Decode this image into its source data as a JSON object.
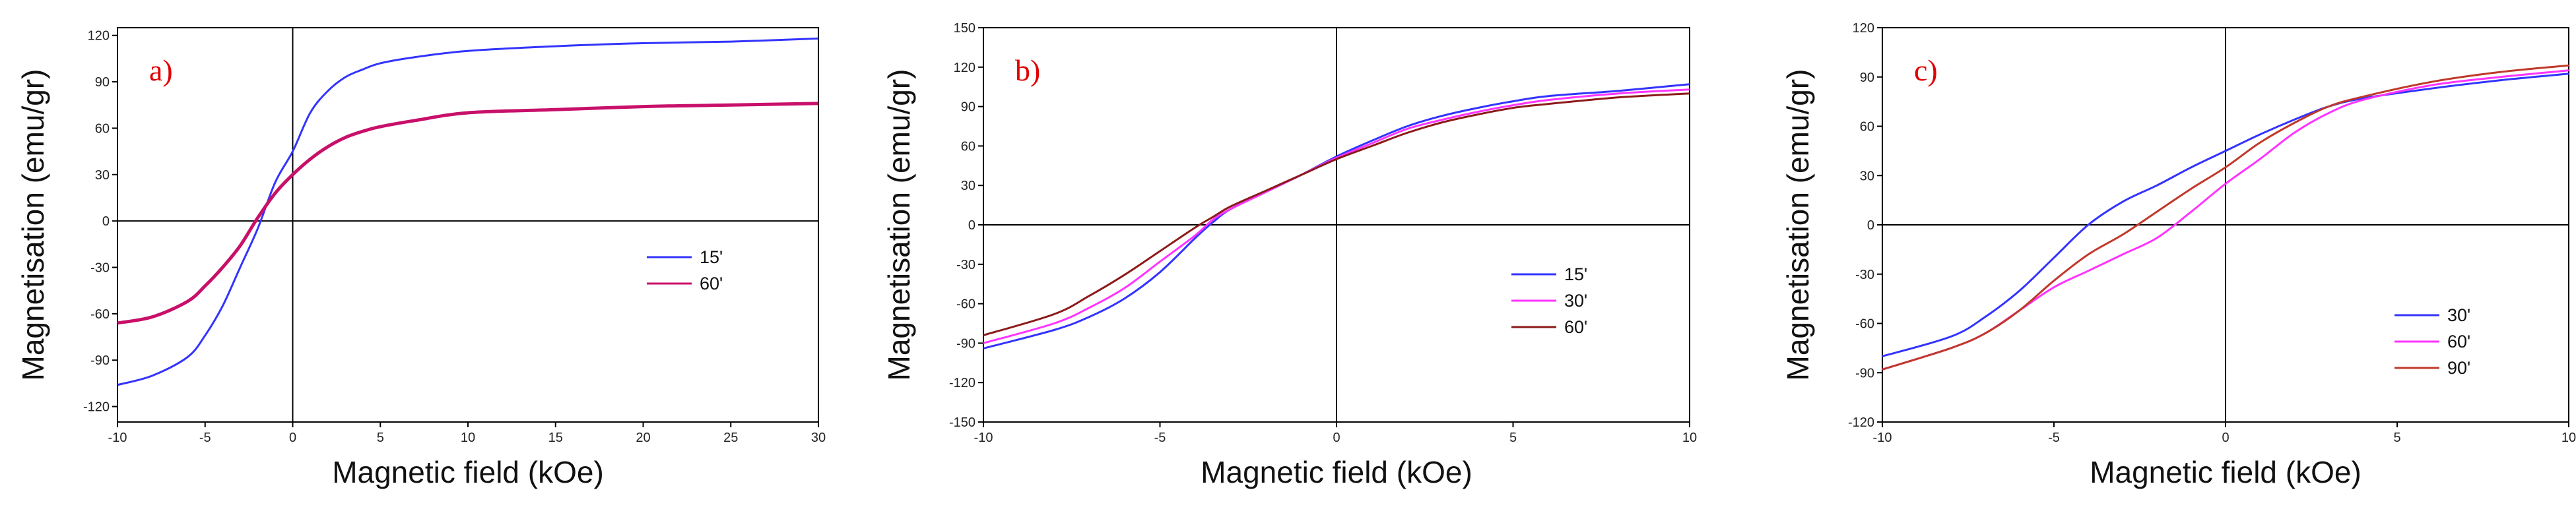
{
  "chart_data": [
    {
      "type": "line",
      "panel_label": "a)",
      "xlabel": "Magnetic field (kOe)",
      "ylabel": "Magnetisation (emu/gr)",
      "xlim": [
        -10,
        30
      ],
      "ylim": [
        -130,
        125
      ],
      "xticks": [
        -10,
        -5,
        0,
        5,
        10,
        15,
        20,
        25,
        30
      ],
      "yticks": [
        -120,
        -90,
        -60,
        -30,
        0,
        30,
        60,
        90,
        120
      ],
      "legend_position": "right-middle",
      "series": [
        {
          "name": "15'",
          "color": "#3333ff",
          "x": [
            -10,
            -8,
            -6,
            -5,
            -4,
            -3,
            -2,
            -1,
            0,
            1,
            2,
            3,
            4,
            5,
            7,
            10,
            15,
            20,
            25,
            30
          ],
          "y": [
            -106,
            -100,
            -88,
            -74,
            -55,
            -30,
            -5,
            25,
            45,
            70,
            84,
            93,
            98,
            102,
            106,
            110,
            113,
            115,
            116,
            118
          ]
        },
        {
          "name": "60'",
          "color": "#c8106a",
          "x": [
            -10,
            -8,
            -6,
            -5,
            -4,
            -3,
            -2,
            -1,
            0,
            1,
            2,
            3,
            4,
            5,
            7,
            10,
            15,
            20,
            25,
            30
          ],
          "y": [
            -66,
            -62,
            -52,
            -42,
            -30,
            -16,
            2,
            18,
            30,
            40,
            48,
            54,
            58,
            61,
            65,
            70,
            72,
            74,
            75,
            76
          ]
        }
      ]
    },
    {
      "type": "line",
      "panel_label": "b)",
      "xlabel": "Magnetic field (kOe)",
      "ylabel": "Magnetisation (emu/gr)",
      "xlim": [
        -10,
        10
      ],
      "ylim": [
        -150,
        150
      ],
      "xticks": [
        -10,
        -5,
        0,
        5,
        10
      ],
      "yticks": [
        -150,
        -120,
        -90,
        -60,
        -30,
        0,
        30,
        60,
        90,
        120,
        150
      ],
      "legend_position": "right-middle",
      "series": [
        {
          "name": "15'",
          "color": "#3333ff",
          "x": [
            -10,
            -8,
            -7,
            -6,
            -5,
            -4,
            -3.5,
            -3,
            -2,
            -1,
            0,
            1,
            2,
            3,
            4,
            5,
            6,
            8,
            10
          ],
          "y": [
            -94,
            -80,
            -70,
            -56,
            -36,
            -10,
            2,
            12,
            25,
            38,
            52,
            64,
            75,
            83,
            89,
            94,
            98,
            102,
            107
          ]
        },
        {
          "name": "30'",
          "color": "#ff33ff",
          "x": [
            -10,
            -8,
            -7,
            -6,
            -5,
            -4,
            -3.5,
            -3,
            -2,
            -1,
            0,
            1,
            2,
            3,
            4,
            5,
            6,
            8,
            10
          ],
          "y": [
            -90,
            -75,
            -63,
            -48,
            -28,
            -8,
            4,
            12,
            25,
            38,
            51,
            62,
            73,
            80,
            86,
            91,
            95,
            100,
            103
          ]
        },
        {
          "name": "60'",
          "color": "#8b1a1a",
          "x": [
            -10,
            -8,
            -7,
            -6,
            -5,
            -4,
            -3.5,
            -3,
            -2,
            -1,
            0,
            1,
            2,
            3,
            4,
            5,
            6,
            8,
            10
          ],
          "y": [
            -84,
            -68,
            -54,
            -38,
            -20,
            -2,
            6,
            14,
            26,
            38,
            50,
            60,
            70,
            78,
            84,
            89,
            92,
            97,
            100
          ]
        }
      ]
    },
    {
      "type": "line",
      "panel_label": "c)",
      "xlabel": "Magnetic field (kOe)",
      "ylabel": "Magnetisation (emu/gr)",
      "xlim": [
        -10,
        10
      ],
      "ylim": [
        -120,
        120
      ],
      "xticks": [
        -10,
        -5,
        0,
        5,
        10
      ],
      "yticks": [
        -120,
        -90,
        -60,
        -30,
        0,
        30,
        60,
        90,
        120
      ],
      "legend_position": "right-lower",
      "series": [
        {
          "name": "30'",
          "color": "#3333ff",
          "x": [
            -10,
            -8,
            -7,
            -6,
            -5,
            -4,
            -3,
            -2,
            -1,
            0,
            1,
            2,
            3,
            4,
            6,
            8,
            10
          ],
          "y": [
            -80,
            -68,
            -56,
            -40,
            -20,
            0,
            14,
            24,
            35,
            45,
            55,
            64,
            72,
            77,
            83,
            88,
            92
          ]
        },
        {
          "name": "60'",
          "color": "#ff33ff",
          "x": [
            -10,
            -8,
            -7,
            -6,
            -5,
            -4,
            -3,
            -2,
            -1,
            0,
            1,
            2,
            3,
            4,
            6,
            8,
            10
          ],
          "y": [
            -88,
            -75,
            -66,
            -52,
            -38,
            -28,
            -18,
            -8,
            8,
            25,
            40,
            56,
            68,
            76,
            85,
            90,
            94
          ]
        },
        {
          "name": "90'",
          "color": "#c0392b",
          "x": [
            -10,
            -8,
            -7,
            -6,
            -5,
            -4,
            -3,
            -2,
            -1,
            0,
            1,
            2,
            3,
            4,
            6,
            8,
            10
          ],
          "y": [
            -88,
            -75,
            -66,
            -52,
            -34,
            -18,
            -6,
            8,
            22,
            35,
            50,
            62,
            72,
            78,
            87,
            93,
            97
          ]
        }
      ]
    }
  ]
}
